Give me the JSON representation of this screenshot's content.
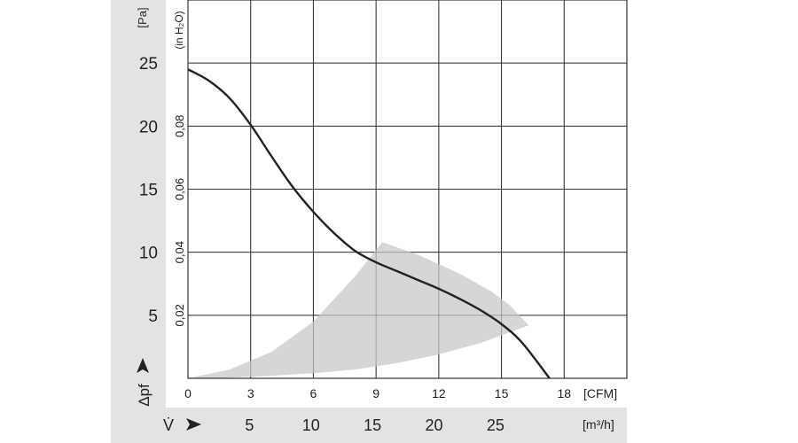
{
  "chart_data": {
    "type": "line",
    "x_axis_cfm": {
      "unit": "[CFM]",
      "ticks": [
        0,
        3,
        6,
        9,
        12,
        15,
        18
      ],
      "range": [
        0,
        21
      ]
    },
    "x_axis_m3h": {
      "symbol": "V̇",
      "unit": "[m³/h]",
      "ticks": [
        5,
        10,
        15,
        20,
        25
      ]
    },
    "y_axis_pa": {
      "label": "Δpf",
      "unit": "[Pa]",
      "ticks": [
        5,
        10,
        15,
        20,
        25
      ],
      "range": [
        0,
        30
      ]
    },
    "y_axis_inh2o": {
      "unit": "(in H₂O)",
      "ticks": [
        "0,02",
        "0,04",
        "0,06",
        "0,08"
      ]
    },
    "grid": true,
    "series": [
      {
        "x": [
          0,
          1,
          2,
          3,
          4,
          5,
          6,
          7,
          8,
          9,
          10,
          11,
          12,
          13,
          14,
          15,
          16,
          17.3
        ],
        "y": [
          24.5,
          23.6,
          22.2,
          20.1,
          17.6,
          15.2,
          13.2,
          11.5,
          10.1,
          9.2,
          8.5,
          7.8,
          7.1,
          6.3,
          5.4,
          4.3,
          2.8,
          0
        ],
        "color": "#222222"
      }
    ],
    "operating_range": {
      "upper": {
        "x": [
          0,
          2,
          4,
          6,
          8,
          9.3
        ],
        "y": [
          0,
          0.7,
          2.1,
          4.5,
          8.1,
          10.8
        ]
      },
      "arc": {
        "x": [
          9.3,
          11,
          13,
          14.5,
          15.4,
          16.3
        ],
        "y": [
          10.8,
          9.8,
          8.3,
          6.9,
          5.8,
          4.2
        ]
      },
      "lower": {
        "x": [
          16.3,
          14,
          12,
          10,
          8,
          6,
          4,
          2,
          0
        ],
        "y": [
          4.2,
          2.8,
          1.9,
          1.2,
          0.7,
          0.4,
          0.2,
          0.05,
          0
        ]
      },
      "color": "#d6d6d6"
    }
  }
}
